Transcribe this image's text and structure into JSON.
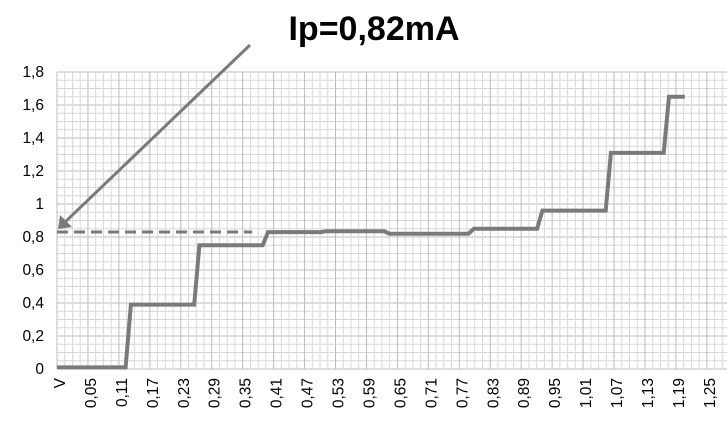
{
  "chart_data": {
    "type": "line",
    "title": "Ip=0,82mA",
    "xlabel": "",
    "ylabel": "",
    "ylim": [
      0,
      1.8
    ],
    "y_ticks": [
      "0",
      "0,2",
      "0,4",
      "0,6",
      "0,8",
      "1",
      "1,2",
      "1,4",
      "1,6",
      "1,8"
    ],
    "x_ticks": [
      "V",
      "0,05",
      "0,11",
      "0,17",
      "0,23",
      "0,29",
      "0,35",
      "0,41",
      "0,47",
      "0,53",
      "0,59",
      "0,65",
      "0,71",
      "0,77",
      "0,83",
      "0,89",
      "0,95",
      "1,01",
      "1,07",
      "1,13",
      "1,19",
      "1,25"
    ],
    "grid": true,
    "series": [
      {
        "x": [
          0,
          0.07,
          0.08,
          0.13,
          0.14,
          0.16,
          0.17,
          0.23,
          0.24,
          0.26,
          0.27,
          0.36,
          0.37,
          0.39,
          0.4,
          0.5,
          0.51,
          0.62,
          0.63,
          0.78,
          0.79,
          0.82,
          0.83,
          0.91,
          0.92,
          0.94,
          0.95,
          1.01,
          1.02,
          1.04,
          1.05,
          1.15,
          1.16,
          1.19
        ],
        "y": [
          0.01,
          0.01,
          0.01,
          0.01,
          0.39,
          0.39,
          0.39,
          0.39,
          0.39,
          0.39,
          0.75,
          0.75,
          0.75,
          0.75,
          0.83,
          0.83,
          0.835,
          0.835,
          0.82,
          0.82,
          0.85,
          0.85,
          0.85,
          0.85,
          0.96,
          0.96,
          0.96,
          0.96,
          0.96,
          0.96,
          1.31,
          1.31,
          1.65,
          1.65
        ]
      }
    ],
    "reference_line": {
      "y": 0.83,
      "style": "dashed"
    },
    "annotation": {
      "type": "arrow",
      "points_to_y": 0.83,
      "points_to_x": 0
    }
  }
}
